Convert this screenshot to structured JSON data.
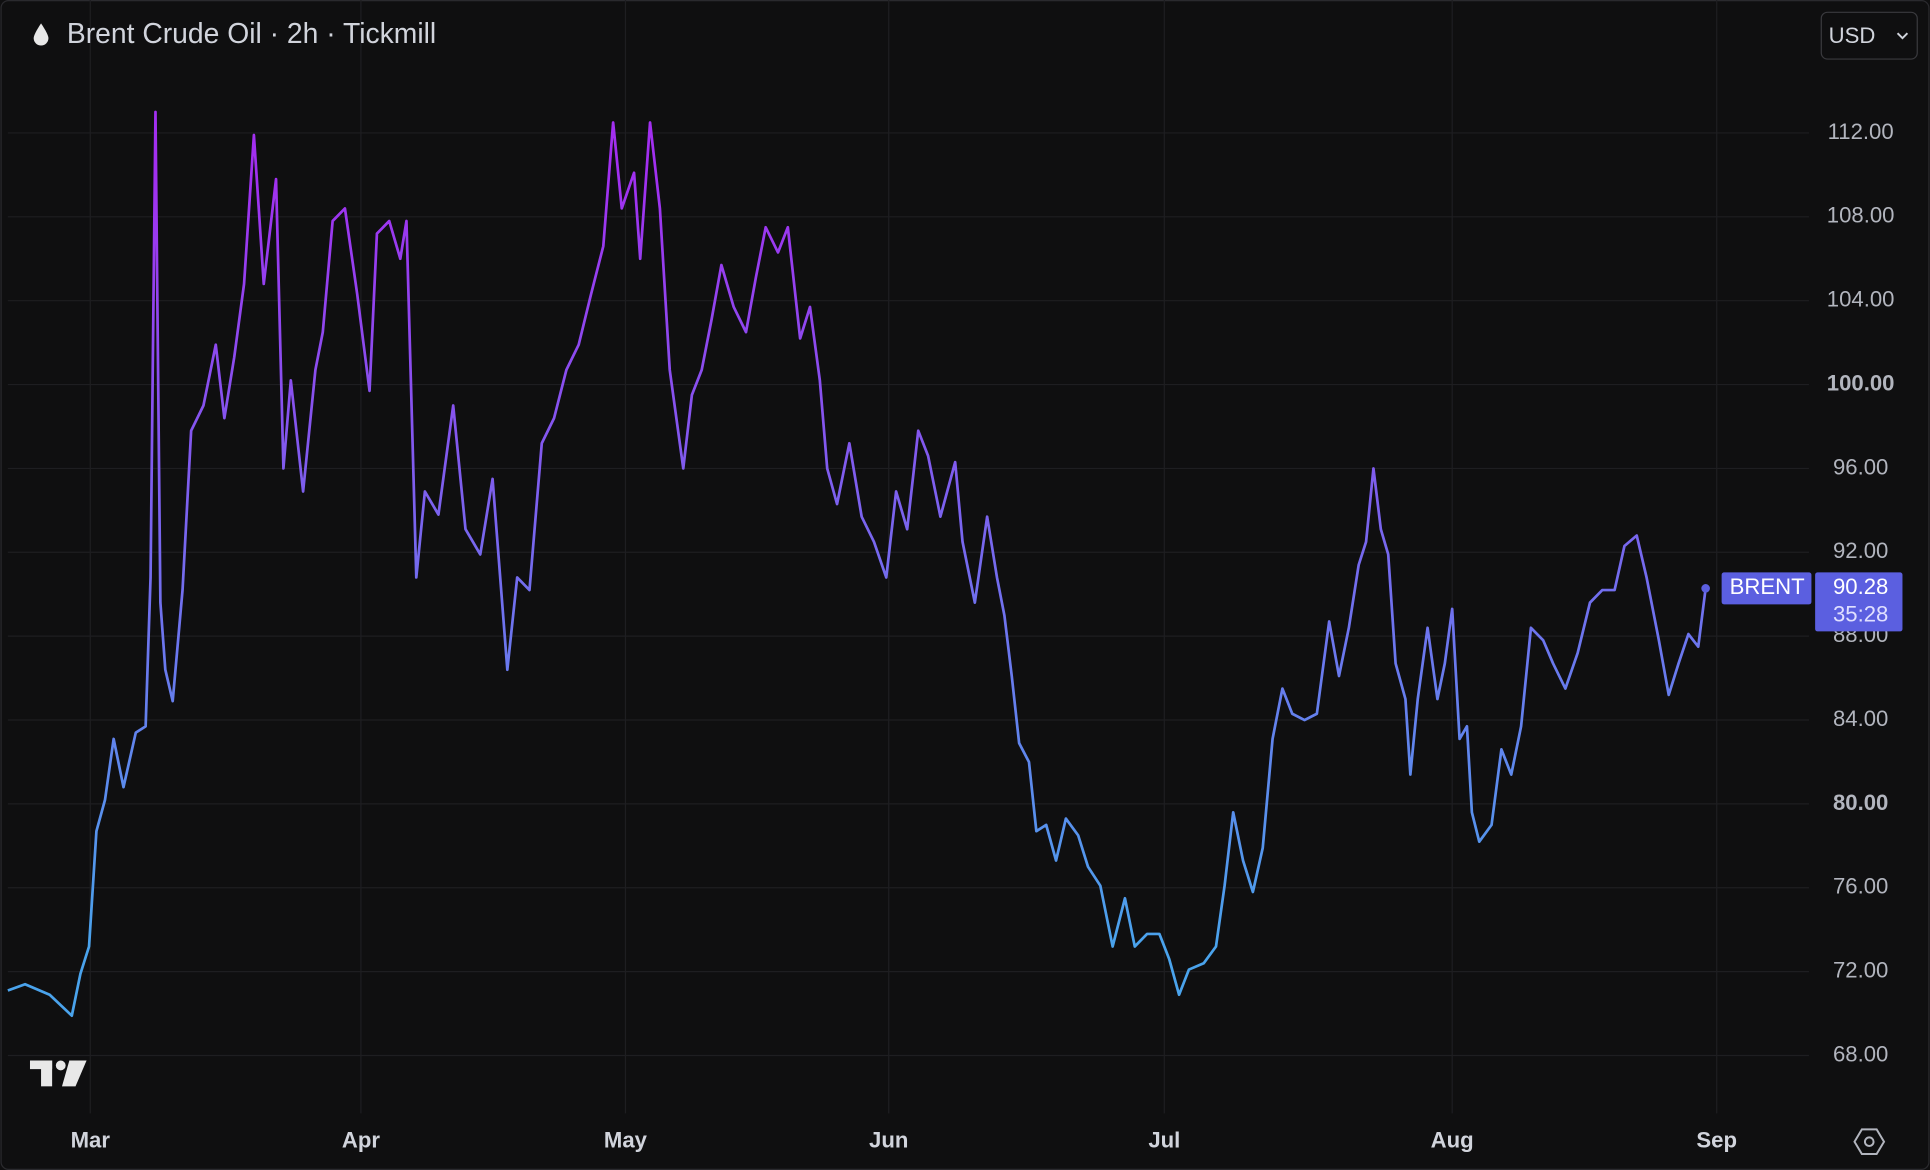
{
  "chart_data": {
    "type": "line",
    "title": "Brent Crude Oil · 2h · Tickmill",
    "currency": "USD",
    "countdown": "35:28",
    "grid": true,
    "xlim": [
      6,
      1470
    ],
    "xticks": [
      {
        "value": 73,
        "label": "Mar"
      },
      {
        "value": 293,
        "label": "Apr"
      },
      {
        "value": 508,
        "label": "May"
      },
      {
        "value": 722,
        "label": "Jun"
      },
      {
        "value": 946,
        "label": "Jul"
      },
      {
        "value": 1180,
        "label": "Aug"
      },
      {
        "value": 1395,
        "label": "Sep"
      }
    ],
    "ylim": [
      65.24,
      118.34
    ],
    "yticks": [
      {
        "value": 68,
        "label": "68.00"
      },
      {
        "value": 72,
        "label": "72.00"
      },
      {
        "value": 76,
        "label": "76.00"
      },
      {
        "value": 80,
        "label": "80.00",
        "bold": true
      },
      {
        "value": 84,
        "label": "84.00"
      },
      {
        "value": 88,
        "label": "88.00"
      },
      {
        "value": 92,
        "label": "92.00"
      },
      {
        "value": 96,
        "label": "96.00"
      },
      {
        "value": 100,
        "label": "100.00",
        "bold": true
      },
      {
        "value": 104,
        "label": "104.00"
      },
      {
        "value": 108,
        "label": "108.00"
      },
      {
        "value": 112,
        "label": "112.00"
      }
    ],
    "x": [
      6,
      20,
      40,
      58,
      65,
      72,
      78,
      85,
      92,
      100,
      110,
      118,
      122,
      126,
      130,
      134,
      140,
      148,
      155,
      165,
      175,
      182,
      190,
      198,
      206,
      214,
      224,
      230,
      236,
      246,
      256,
      262,
      270,
      280,
      290,
      300,
      306,
      316,
      325,
      330,
      338,
      345,
      356,
      368,
      378,
      390,
      400,
      412,
      420,
      430,
      440,
      450,
      460,
      470,
      480,
      490,
      498,
      505,
      515,
      520,
      528,
      536,
      544,
      555,
      562,
      570,
      578,
      586,
      596,
      606,
      614,
      622,
      632,
      640,
      650,
      658,
      666,
      672,
      680,
      690,
      700,
      710,
      720,
      728,
      737,
      746,
      754,
      764,
      776,
      782,
      792,
      802,
      810,
      816,
      822,
      828,
      836,
      842,
      850,
      858,
      866,
      876,
      884,
      894,
      904,
      914,
      922,
      932,
      942,
      950,
      958,
      966,
      978,
      988,
      995,
      1002,
      1010,
      1018,
      1026,
      1034,
      1042,
      1050,
      1060,
      1070,
      1080,
      1088,
      1096,
      1104,
      1110,
      1116,
      1122,
      1128,
      1134,
      1142,
      1146,
      1152,
      1160,
      1168,
      1174,
      1180,
      1186,
      1192,
      1196,
      1202,
      1212,
      1220,
      1228,
      1236,
      1244,
      1254,
      1262,
      1272,
      1282,
      1292,
      1302,
      1312,
      1320,
      1330,
      1338,
      1348,
      1356,
      1364,
      1372,
      1380,
      1386
    ],
    "series": [
      {
        "name": "BRENT",
        "color": [
          "#4aa3ec",
          "#a22ff0"
        ],
        "label_color": "#5b5fe0",
        "values": [
          71.1,
          71.4,
          70.9,
          69.9,
          71.9,
          73.2,
          78.7,
          80.2,
          83.1,
          80.8,
          83.4,
          83.7,
          90.8,
          113,
          89.6,
          86.4,
          84.9,
          90.2,
          97.8,
          99.0,
          101.9,
          98.4,
          101.3,
          104.8,
          111.9,
          104.8,
          109.8,
          96.0,
          100.2,
          94.9,
          100.7,
          102.5,
          107.8,
          108.4,
          104.3,
          99.7,
          107.2,
          107.8,
          106.0,
          107.8,
          90.8,
          94.9,
          93.8,
          99.0,
          93.1,
          91.9,
          95.5,
          86.4,
          90.8,
          90.2,
          97.2,
          98.4,
          100.7,
          101.9,
          104.3,
          106.6,
          112.5,
          108.4,
          110.1,
          106.0,
          112.5,
          108.4,
          100.7,
          96.0,
          99.5,
          100.7,
          103.1,
          105.7,
          103.7,
          102.5,
          105.1,
          107.5,
          106.3,
          107.5,
          102.2,
          103.7,
          100.2,
          96.0,
          94.3,
          97.2,
          93.7,
          92.5,
          90.8,
          94.9,
          93.1,
          97.8,
          96.6,
          93.7,
          96.3,
          92.5,
          89.6,
          93.7,
          90.8,
          89.0,
          86.1,
          82.9,
          82.0,
          78.7,
          79.0,
          77.3,
          79.3,
          78.5,
          77.0,
          76.1,
          73.2,
          75.5,
          73.2,
          73.8,
          73.8,
          72.6,
          70.9,
          72.1,
          72.4,
          73.2,
          76.1,
          79.6,
          77.3,
          75.8,
          77.9,
          83.1,
          85.5,
          84.3,
          84.0,
          84.3,
          88.7,
          86.1,
          88.4,
          91.4,
          92.5,
          96.0,
          93.1,
          91.9,
          86.7,
          85.0,
          81.4,
          85.0,
          88.4,
          85.0,
          86.7,
          89.3,
          83.1,
          83.7,
          79.6,
          78.2,
          79.0,
          82.6,
          81.4,
          83.7,
          88.4,
          87.8,
          86.7,
          85.5,
          87.2,
          89.6,
          90.2,
          90.2,
          92.3,
          92.8,
          90.8,
          87.8,
          85.2,
          86.7,
          88.1,
          87.5,
          90.28
        ]
      }
    ]
  }
}
